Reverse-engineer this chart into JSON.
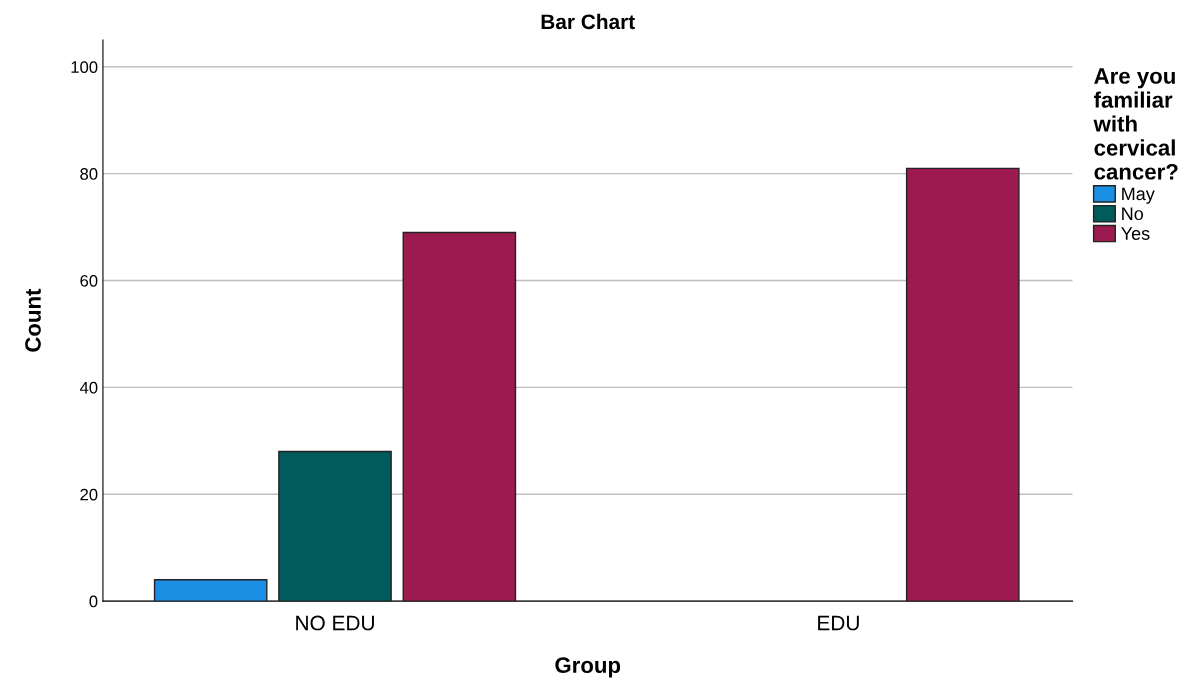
{
  "chart_data": {
    "type": "bar",
    "title": "Bar Chart",
    "xlabel": "Group",
    "ylabel": "Count",
    "legend_title": "Are you\nfamiliar\nwith\ncervical\ncancer?",
    "categories": [
      "NO EDU",
      "EDU"
    ],
    "series": [
      {
        "name": "May",
        "color": "#1a8fe3",
        "values": [
          4,
          null
        ]
      },
      {
        "name": "No",
        "color": "#005c5c",
        "values": [
          28,
          null
        ]
      },
      {
        "name": "Yes",
        "color": "#9c1a4f",
        "values": [
          69,
          81
        ]
      }
    ],
    "ylim": [
      0,
      105
    ],
    "yticks": [
      0,
      20,
      40,
      60,
      80,
      100
    ],
    "grid": "y",
    "legend": "right"
  }
}
